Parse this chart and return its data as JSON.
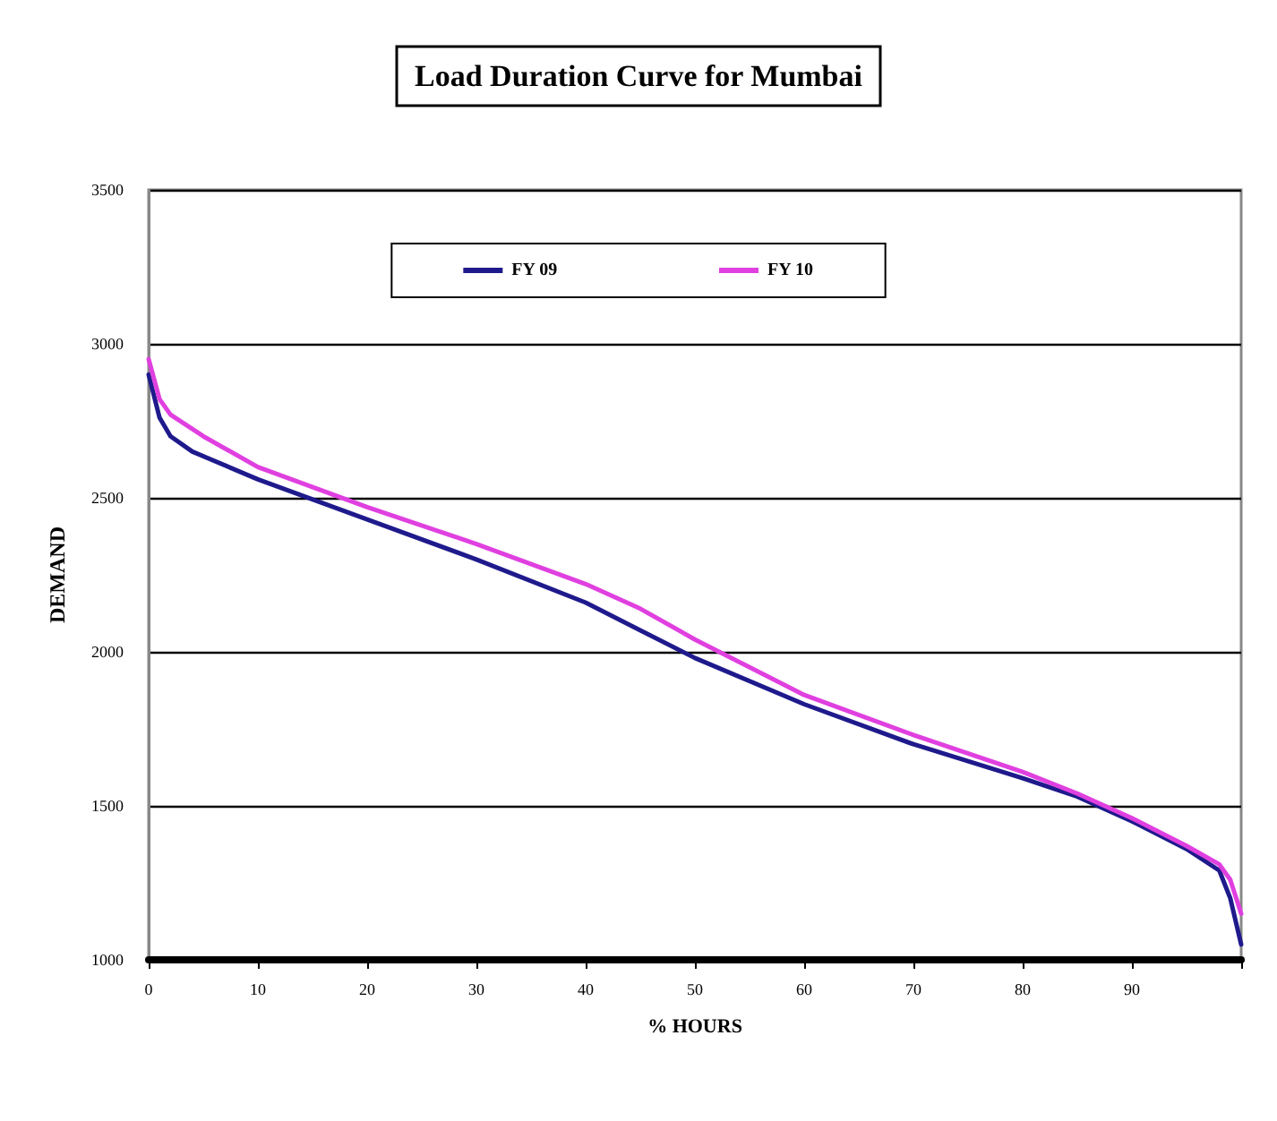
{
  "chart_data": {
    "type": "line",
    "title": "Load Duration Curve for Mumbai",
    "xlabel": "% HOURS",
    "ylabel": "DEMAND",
    "xlim": [
      0,
      100
    ],
    "xticks": [
      0,
      10,
      20,
      30,
      40,
      50,
      60,
      70,
      80,
      90,
      {
        "value": 100,
        "label": null
      }
    ],
    "ylim": [
      1000,
      3500
    ],
    "yticks": [
      1000,
      1500,
      2000,
      2500,
      3000,
      3500
    ],
    "grid": "y",
    "legend": "top",
    "marker": "none",
    "line_style": "solid",
    "series": [
      {
        "name": "FY 09",
        "color": "#1f1a8c",
        "x": [
          0,
          1,
          2,
          4,
          10,
          20,
          30,
          40,
          45,
          50,
          60,
          70,
          80,
          85,
          90,
          95,
          98,
          99,
          100
        ],
        "values": [
          2900,
          2760,
          2700,
          2650,
          2560,
          2430,
          2300,
          2160,
          2070,
          1980,
          1830,
          1700,
          1590,
          1530,
          1450,
          1360,
          1290,
          1200,
          1050
        ]
      },
      {
        "name": "FY 10",
        "color": "#e040e0",
        "x": [
          0,
          1,
          2,
          5,
          10,
          20,
          30,
          40,
          45,
          50,
          60,
          70,
          80,
          85,
          90,
          95,
          98,
          99,
          100
        ],
        "values": [
          2950,
          2820,
          2770,
          2700,
          2600,
          2470,
          2350,
          2220,
          2140,
          2040,
          1860,
          1730,
          1610,
          1540,
          1460,
          1370,
          1310,
          1260,
          1150
        ]
      }
    ]
  }
}
